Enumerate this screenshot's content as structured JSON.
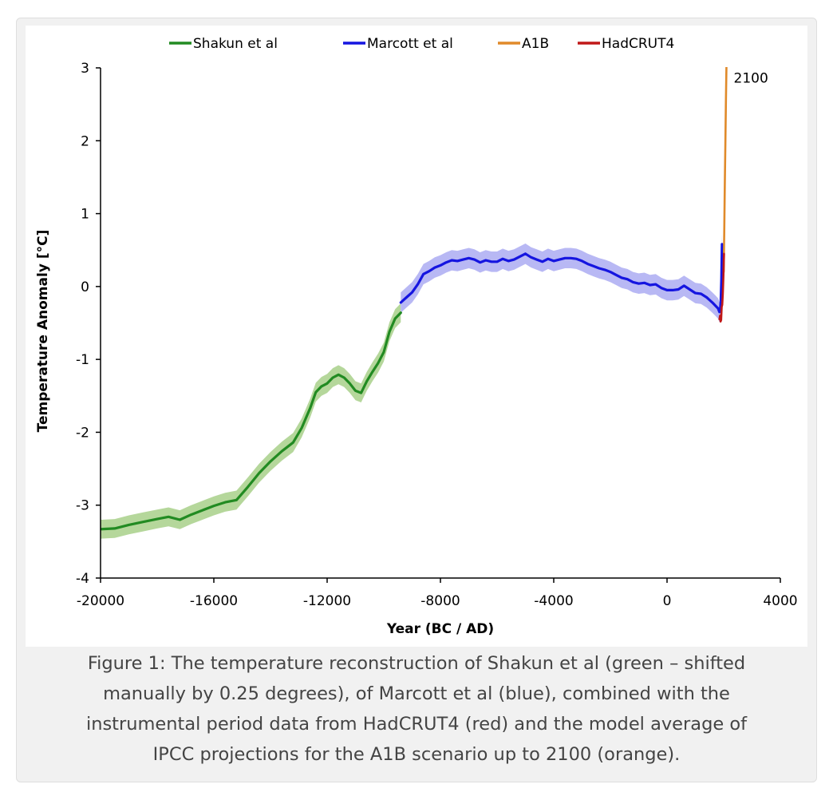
{
  "chart_data": {
    "type": "line",
    "title": "",
    "xlabel": "Year (BC / AD)",
    "ylabel": "Temperature Anomaly [°C]",
    "xlim": [
      -20000,
      4000
    ],
    "ylim": [
      -4,
      3
    ],
    "x_ticks": [
      -20000,
      -16000,
      -12000,
      -8000,
      -4000,
      0,
      4000
    ],
    "x_tick_labels": [
      "-20000",
      "-16000",
      "-12000",
      "-8000",
      "-4000",
      "0",
      "4000"
    ],
    "y_ticks": [
      3,
      2,
      1,
      0,
      -1,
      -2,
      -3,
      -4
    ],
    "y_tick_labels": [
      "3",
      "2",
      "1",
      "0",
      "-1",
      "-2",
      "-3",
      "-4"
    ],
    "grid": false,
    "legend_position": "top",
    "annotations": [
      {
        "text": "2100",
        "x": 2100,
        "y": 2.8
      }
    ],
    "series": [
      {
        "name": "Shakun et al",
        "color": "#228b22",
        "band_color": "#b5d79b",
        "band_halfwidth": 0.13,
        "x": [
          -20000,
          -19500,
          -19000,
          -18500,
          -18000,
          -17600,
          -17200,
          -16800,
          -16400,
          -16000,
          -15600,
          -15200,
          -14800,
          -14400,
          -14000,
          -13600,
          -13200,
          -12900,
          -12600,
          -12400,
          -12200,
          -12000,
          -11800,
          -11600,
          -11400,
          -11200,
          -11000,
          -10800,
          -10600,
          -10400,
          -10200,
          -10000,
          -9800,
          -9600,
          -9400
        ],
        "y": [
          -3.33,
          -3.32,
          -3.27,
          -3.23,
          -3.19,
          -3.16,
          -3.2,
          -3.13,
          -3.07,
          -3.01,
          -2.96,
          -2.93,
          -2.75,
          -2.56,
          -2.4,
          -2.26,
          -2.14,
          -1.94,
          -1.67,
          -1.45,
          -1.37,
          -1.33,
          -1.25,
          -1.21,
          -1.25,
          -1.33,
          -1.43,
          -1.46,
          -1.3,
          -1.17,
          -1.05,
          -0.9,
          -0.62,
          -0.44,
          -0.36
        ]
      },
      {
        "name": "Marcott et al",
        "color": "#1515e0",
        "band_color": "#b8b8f4",
        "band_halfwidth": 0.14,
        "x": [
          -9400,
          -9200,
          -9000,
          -8800,
          -8600,
          -8400,
          -8200,
          -8000,
          -7800,
          -7600,
          -7400,
          -7200,
          -7000,
          -6800,
          -6600,
          -6400,
          -6200,
          -6000,
          -5800,
          -5600,
          -5400,
          -5200,
          -5000,
          -4800,
          -4600,
          -4400,
          -4200,
          -4000,
          -3800,
          -3600,
          -3400,
          -3200,
          -3000,
          -2800,
          -2600,
          -2400,
          -2200,
          -2000,
          -1800,
          -1600,
          -1400,
          -1200,
          -1000,
          -800,
          -600,
          -400,
          -200,
          0,
          200,
          400,
          600,
          800,
          1000,
          1200,
          1400,
          1600,
          1700,
          1800,
          1850,
          1880,
          1900,
          1920,
          1940,
          1950
        ],
        "y": [
          -0.22,
          -0.15,
          -0.08,
          0.03,
          0.17,
          0.21,
          0.26,
          0.29,
          0.33,
          0.36,
          0.35,
          0.37,
          0.39,
          0.37,
          0.33,
          0.36,
          0.34,
          0.34,
          0.38,
          0.35,
          0.37,
          0.41,
          0.45,
          0.4,
          0.37,
          0.34,
          0.38,
          0.35,
          0.37,
          0.39,
          0.39,
          0.38,
          0.35,
          0.31,
          0.28,
          0.25,
          0.23,
          0.2,
          0.16,
          0.12,
          0.1,
          0.06,
          0.04,
          0.05,
          0.02,
          0.03,
          -0.02,
          -0.05,
          -0.05,
          -0.04,
          0.01,
          -0.04,
          -0.09,
          -0.1,
          -0.15,
          -0.22,
          -0.26,
          -0.3,
          -0.35,
          -0.31,
          -0.2,
          0.1,
          0.58,
          0.35
        ]
      },
      {
        "name": "A1B",
        "color": "#e08a2a",
        "x": [
          2000,
          2020,
          2040,
          2060,
          2080,
          2100
        ],
        "y": [
          0.2,
          0.75,
          1.4,
          1.95,
          2.55,
          3.05
        ]
      },
      {
        "name": "HadCRUT4",
        "color": "#c01818",
        "x": [
          1850,
          1870,
          1890,
          1910,
          1930,
          1950,
          1970,
          1990,
          2010
        ],
        "y": [
          -0.45,
          -0.4,
          -0.48,
          -0.46,
          -0.28,
          -0.25,
          -0.1,
          0.12,
          0.45
        ]
      }
    ]
  },
  "caption": {
    "lines": [
      "Figure 1: The temperature reconstruction of Shakun et al (green – shifted",
      "manually by 0.25 degrees), of Marcott et al (blue), combined with the",
      "instrumental period data from HadCRUT4 (red) and the model average of",
      "IPCC projections for the A1B scenario up to 2100 (orange)."
    ]
  }
}
